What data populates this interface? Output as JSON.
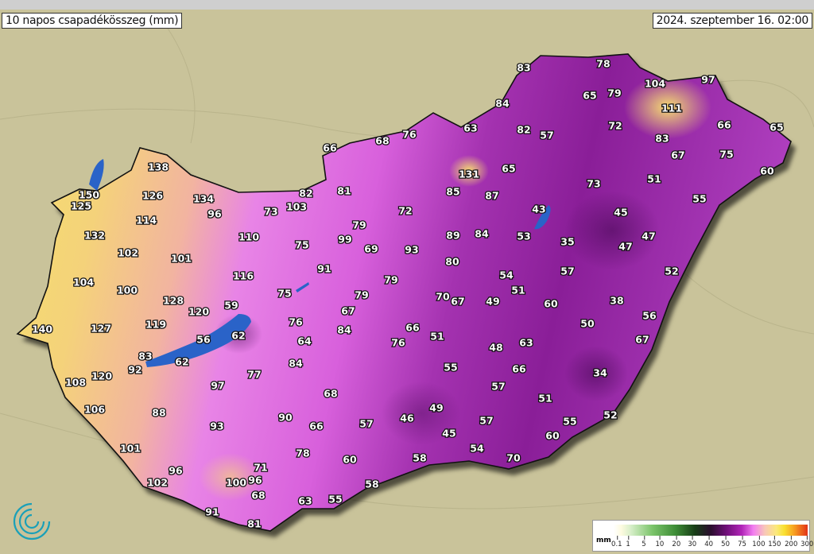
{
  "title": "10 napos csapadékösszeg (mm)",
  "datetime": "2024. szeptember 16. 02:00",
  "legend": {
    "unit": "mm",
    "ticks": [
      "0.1",
      "1",
      "5",
      "10",
      "20",
      "30",
      "40",
      "50",
      "75",
      "100",
      "150",
      "200",
      "300"
    ]
  },
  "colors": {
    "background": "#c9c39a",
    "west": "#f7e060",
    "center": "#e880e8",
    "east": "#8a1e98",
    "lake": "#2a63c8"
  },
  "stations": [
    {
      "value": "138"
    },
    {
      "value": "150"
    },
    {
      "value": "125"
    },
    {
      "value": "126"
    },
    {
      "value": "134"
    },
    {
      "value": "96"
    },
    {
      "value": "114"
    },
    {
      "value": "132"
    },
    {
      "value": "102"
    },
    {
      "value": "101"
    },
    {
      "value": "104"
    },
    {
      "value": "100"
    },
    {
      "value": "128"
    },
    {
      "value": "120"
    },
    {
      "value": "119"
    },
    {
      "value": "127"
    },
    {
      "value": "140"
    },
    {
      "value": "59"
    },
    {
      "value": "56"
    },
    {
      "value": "62"
    },
    {
      "value": "83"
    },
    {
      "value": "62"
    },
    {
      "value": "92"
    },
    {
      "value": "120"
    },
    {
      "value": "108"
    },
    {
      "value": "106"
    },
    {
      "value": "88"
    },
    {
      "value": "93"
    },
    {
      "value": "97"
    },
    {
      "value": "77"
    },
    {
      "value": "101"
    },
    {
      "value": "96"
    },
    {
      "value": "102"
    },
    {
      "value": "100"
    },
    {
      "value": "71"
    },
    {
      "value": "96"
    },
    {
      "value": "68"
    },
    {
      "value": "91"
    },
    {
      "value": "81"
    },
    {
      "value": "63"
    },
    {
      "value": "55"
    },
    {
      "value": "58"
    },
    {
      "value": "60"
    },
    {
      "value": "78"
    },
    {
      "value": "66"
    },
    {
      "value": "90"
    },
    {
      "value": "57"
    },
    {
      "value": "68"
    },
    {
      "value": "84"
    },
    {
      "value": "64"
    },
    {
      "value": "76"
    },
    {
      "value": "84"
    },
    {
      "value": "67"
    },
    {
      "value": "79"
    },
    {
      "value": "75"
    },
    {
      "value": "91"
    },
    {
      "value": "116"
    },
    {
      "value": "110"
    },
    {
      "value": "75"
    },
    {
      "value": "73"
    },
    {
      "value": "103"
    },
    {
      "value": "82"
    },
    {
      "value": "81"
    },
    {
      "value": "99"
    },
    {
      "value": "79"
    },
    {
      "value": "69"
    },
    {
      "value": "72"
    },
    {
      "value": "93"
    },
    {
      "value": "79"
    },
    {
      "value": "85"
    },
    {
      "value": "87"
    },
    {
      "value": "131"
    },
    {
      "value": "65"
    },
    {
      "value": "89"
    },
    {
      "value": "84"
    },
    {
      "value": "80"
    },
    {
      "value": "66"
    },
    {
      "value": "68"
    },
    {
      "value": "76"
    },
    {
      "value": "63"
    },
    {
      "value": "82"
    },
    {
      "value": "57"
    },
    {
      "value": "84"
    },
    {
      "value": "83"
    },
    {
      "value": "78"
    },
    {
      "value": "65"
    },
    {
      "value": "79"
    },
    {
      "value": "104"
    },
    {
      "value": "97"
    },
    {
      "value": "111"
    },
    {
      "value": "72"
    },
    {
      "value": "66"
    },
    {
      "value": "65"
    },
    {
      "value": "83"
    },
    {
      "value": "67"
    },
    {
      "value": "75"
    },
    {
      "value": "60"
    },
    {
      "value": "73"
    },
    {
      "value": "51"
    },
    {
      "value": "55"
    },
    {
      "value": "43"
    },
    {
      "value": "45"
    },
    {
      "value": "53"
    },
    {
      "value": "35"
    },
    {
      "value": "47"
    },
    {
      "value": "47"
    },
    {
      "value": "57"
    },
    {
      "value": "54"
    },
    {
      "value": "52"
    },
    {
      "value": "70"
    },
    {
      "value": "67"
    },
    {
      "value": "49"
    },
    {
      "value": "51"
    },
    {
      "value": "60"
    },
    {
      "value": "38"
    },
    {
      "value": "56"
    },
    {
      "value": "50"
    },
    {
      "value": "66"
    },
    {
      "value": "76"
    },
    {
      "value": "51"
    },
    {
      "value": "48"
    },
    {
      "value": "63"
    },
    {
      "value": "67"
    },
    {
      "value": "55"
    },
    {
      "value": "66"
    },
    {
      "value": "34"
    },
    {
      "value": "57"
    },
    {
      "value": "51"
    },
    {
      "value": "49"
    },
    {
      "value": "46"
    },
    {
      "value": "57"
    },
    {
      "value": "55"
    },
    {
      "value": "52"
    },
    {
      "value": "45"
    },
    {
      "value": "60"
    },
    {
      "value": "54"
    },
    {
      "value": "58"
    },
    {
      "value": "70"
    }
  ]
}
